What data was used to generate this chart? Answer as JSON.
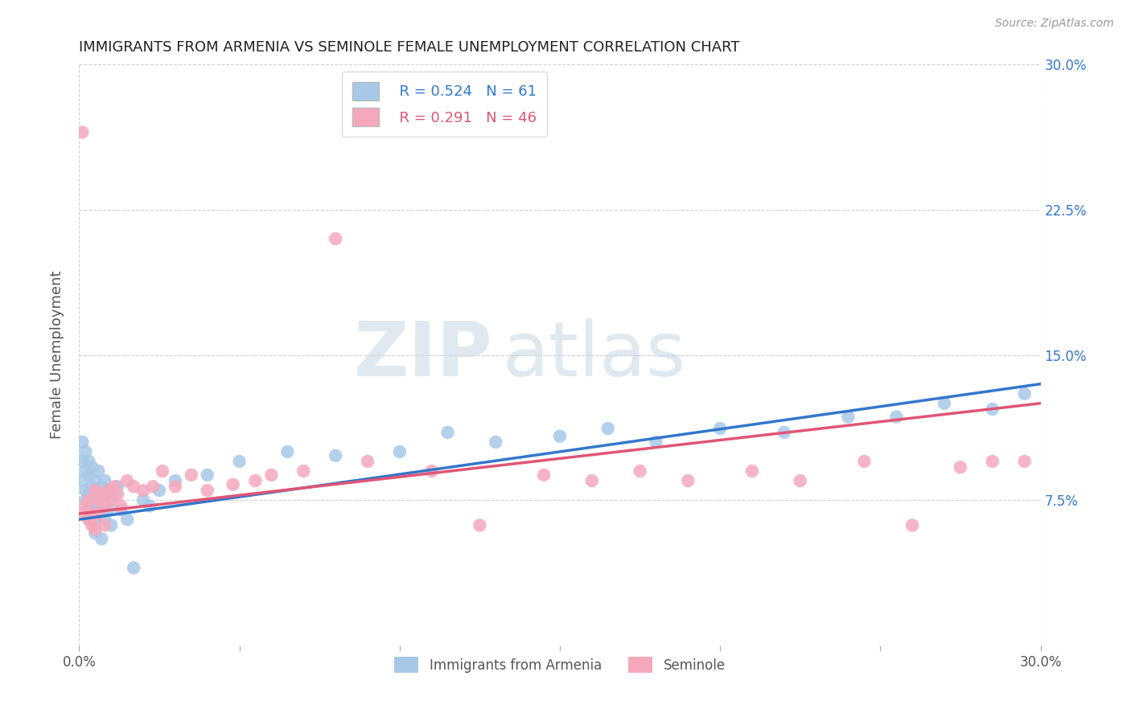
{
  "title": "IMMIGRANTS FROM ARMENIA VS SEMINOLE FEMALE UNEMPLOYMENT CORRELATION CHART",
  "source": "Source: ZipAtlas.com",
  "ylabel": "Female Unemployment",
  "x_min": 0.0,
  "x_max": 0.3,
  "y_min": 0.0,
  "y_max": 0.3,
  "y_ticks": [
    0.075,
    0.15,
    0.225,
    0.3
  ],
  "y_tick_labels": [
    "7.5%",
    "15.0%",
    "22.5%",
    "30.0%"
  ],
  "x_ticks": [
    0.0,
    0.05,
    0.1,
    0.15,
    0.2,
    0.25,
    0.3
  ],
  "x_tick_labels": [
    "0.0%",
    "",
    "",
    "",
    "",
    "",
    "30.0%"
  ],
  "legend_labels": [
    "Immigrants from Armenia",
    "Seminole"
  ],
  "series1_color": "#a8c8e8",
  "series2_color": "#f5a8bc",
  "series1_line_color": "#3377cc",
  "series2_line_color": "#e05575",
  "series1_R": 0.524,
  "series1_N": 61,
  "series2_R": 0.291,
  "series2_N": 46,
  "background_color": "#ffffff",
  "grid_color": "#d0d0d0",
  "series1_x": [
    0.001,
    0.001,
    0.001,
    0.002,
    0.002,
    0.002,
    0.002,
    0.003,
    0.003,
    0.003,
    0.003,
    0.003,
    0.004,
    0.004,
    0.004,
    0.004,
    0.005,
    0.005,
    0.005,
    0.005,
    0.005,
    0.006,
    0.006,
    0.006,
    0.006,
    0.007,
    0.007,
    0.007,
    0.008,
    0.008,
    0.008,
    0.009,
    0.009,
    0.01,
    0.01,
    0.011,
    0.012,
    0.013,
    0.015,
    0.017,
    0.02,
    0.022,
    0.025,
    0.03,
    0.04,
    0.05,
    0.065,
    0.08,
    0.1,
    0.115,
    0.13,
    0.15,
    0.165,
    0.18,
    0.2,
    0.22,
    0.24,
    0.255,
    0.27,
    0.285,
    0.295
  ],
  "series1_y": [
    0.095,
    0.105,
    0.085,
    0.09,
    0.08,
    0.075,
    0.1,
    0.088,
    0.078,
    0.07,
    0.095,
    0.065,
    0.082,
    0.092,
    0.068,
    0.075,
    0.08,
    0.07,
    0.058,
    0.085,
    0.065,
    0.078,
    0.09,
    0.068,
    0.075,
    0.082,
    0.07,
    0.055,
    0.078,
    0.085,
    0.065,
    0.07,
    0.08,
    0.075,
    0.062,
    0.078,
    0.082,
    0.07,
    0.065,
    0.04,
    0.075,
    0.072,
    0.08,
    0.085,
    0.088,
    0.095,
    0.1,
    0.098,
    0.1,
    0.11,
    0.105,
    0.108,
    0.112,
    0.105,
    0.112,
    0.11,
    0.118,
    0.118,
    0.125,
    0.122,
    0.13
  ],
  "series2_x": [
    0.001,
    0.001,
    0.002,
    0.003,
    0.003,
    0.004,
    0.004,
    0.005,
    0.005,
    0.006,
    0.006,
    0.007,
    0.008,
    0.008,
    0.009,
    0.01,
    0.011,
    0.012,
    0.013,
    0.015,
    0.017,
    0.02,
    0.023,
    0.026,
    0.03,
    0.035,
    0.04,
    0.048,
    0.055,
    0.06,
    0.07,
    0.08,
    0.09,
    0.11,
    0.125,
    0.145,
    0.16,
    0.175,
    0.19,
    0.21,
    0.225,
    0.245,
    0.26,
    0.275,
    0.285,
    0.295
  ],
  "series2_y": [
    0.068,
    0.265,
    0.072,
    0.075,
    0.065,
    0.068,
    0.062,
    0.08,
    0.06,
    0.075,
    0.068,
    0.078,
    0.072,
    0.062,
    0.08,
    0.075,
    0.082,
    0.078,
    0.072,
    0.085,
    0.082,
    0.08,
    0.082,
    0.09,
    0.082,
    0.088,
    0.08,
    0.083,
    0.085,
    0.088,
    0.09,
    0.21,
    0.095,
    0.09,
    0.062,
    0.088,
    0.085,
    0.09,
    0.085,
    0.09,
    0.085,
    0.095,
    0.062,
    0.092,
    0.095,
    0.095
  ],
  "trend1_x0": 0.0,
  "trend1_y0": 0.065,
  "trend1_x1": 0.3,
  "trend1_y1": 0.135,
  "trend2_x0": 0.0,
  "trend2_y0": 0.068,
  "trend2_x1": 0.3,
  "trend2_y1": 0.125
}
